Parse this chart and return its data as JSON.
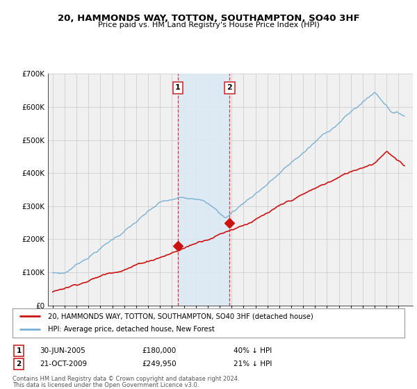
{
  "title": "20, HAMMONDS WAY, TOTTON, SOUTHAMPTON, SO40 3HF",
  "subtitle": "Price paid vs. HM Land Registry's House Price Index (HPI)",
  "hpi_color": "#7ab0d4",
  "price_color": "#cc1111",
  "sale1_date_num": 2005.5,
  "sale1_price": 180000,
  "sale1_label": "1",
  "sale1_text": "30-JUN-2005",
  "sale1_amount": "£180,000",
  "sale1_pct": "40% ↓ HPI",
  "sale2_date_num": 2009.83,
  "sale2_price": 249950,
  "sale2_label": "2",
  "sale2_text": "21-OCT-2009",
  "sale2_amount": "£249,950",
  "sale2_pct": "21% ↓ HPI",
  "legend_line1": "20, HAMMONDS WAY, TOTTON, SOUTHAMPTON, SO40 3HF (detached house)",
  "legend_line2": "HPI: Average price, detached house, New Forest",
  "footnote1": "Contains HM Land Registry data © Crown copyright and database right 2024.",
  "footnote2": "This data is licensed under the Open Government Licence v3.0.",
  "ylim_max": 700000,
  "xmin": 1994.6,
  "xmax": 2025.2,
  "background_color": "#ffffff",
  "plot_bg_color": "#f0f0f0",
  "shade_color": "#daeaf5"
}
